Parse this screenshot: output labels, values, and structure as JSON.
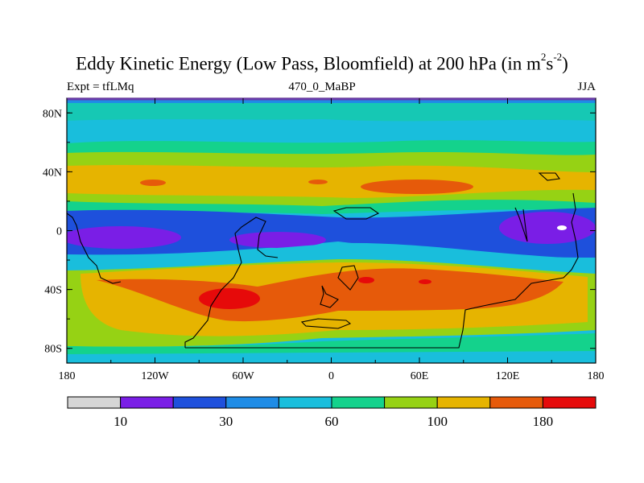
{
  "title": {
    "main": "Eddy Kinetic Energy (Low Pass, Bloomfield) at 200 hPa (in m",
    "unit_sup_1": "2",
    "unit_mid": "s",
    "unit_sup_2": "-2",
    "unit_end": ")"
  },
  "subtitles": {
    "left": "Expt = tfLMq",
    "center": "470_0_MaBP",
    "right": "JJA"
  },
  "axes": {
    "y_ticks": [
      "80N",
      "40N",
      "0",
      "40S",
      "80S"
    ],
    "x_ticks": [
      "180",
      "120W",
      "60W",
      "0",
      "60E",
      "120E",
      "180"
    ]
  },
  "colorbar": {
    "colors": [
      "#d6d6d6",
      "#7a1ee6",
      "#1e50dc",
      "#1e8ce6",
      "#19bedc",
      "#14d28c",
      "#96d214",
      "#e6b400",
      "#e65a0a",
      "#e60a0a"
    ],
    "labels": [
      "10",
      "30",
      "60",
      "100",
      "180"
    ]
  },
  "chart_data": {
    "type": "heatmap",
    "title": "Eddy Kinetic Energy (Low Pass, Bloomfield) at 200 hPa (in m2s-2)",
    "experiment": "tfLMq",
    "season": "JJA",
    "x_range": [
      -180,
      180
    ],
    "y_range": [
      -90,
      90
    ],
    "contour_levels": [
      10,
      20,
      30,
      45,
      60,
      80,
      100,
      140,
      180
    ],
    "features": [
      {
        "label": "SH storm track max",
        "lon": -70,
        "lat": -48,
        "level": ">180"
      },
      {
        "label": "Equatorial minimum",
        "lon": 150,
        "lat": 0,
        "level": "<10"
      }
    ]
  }
}
